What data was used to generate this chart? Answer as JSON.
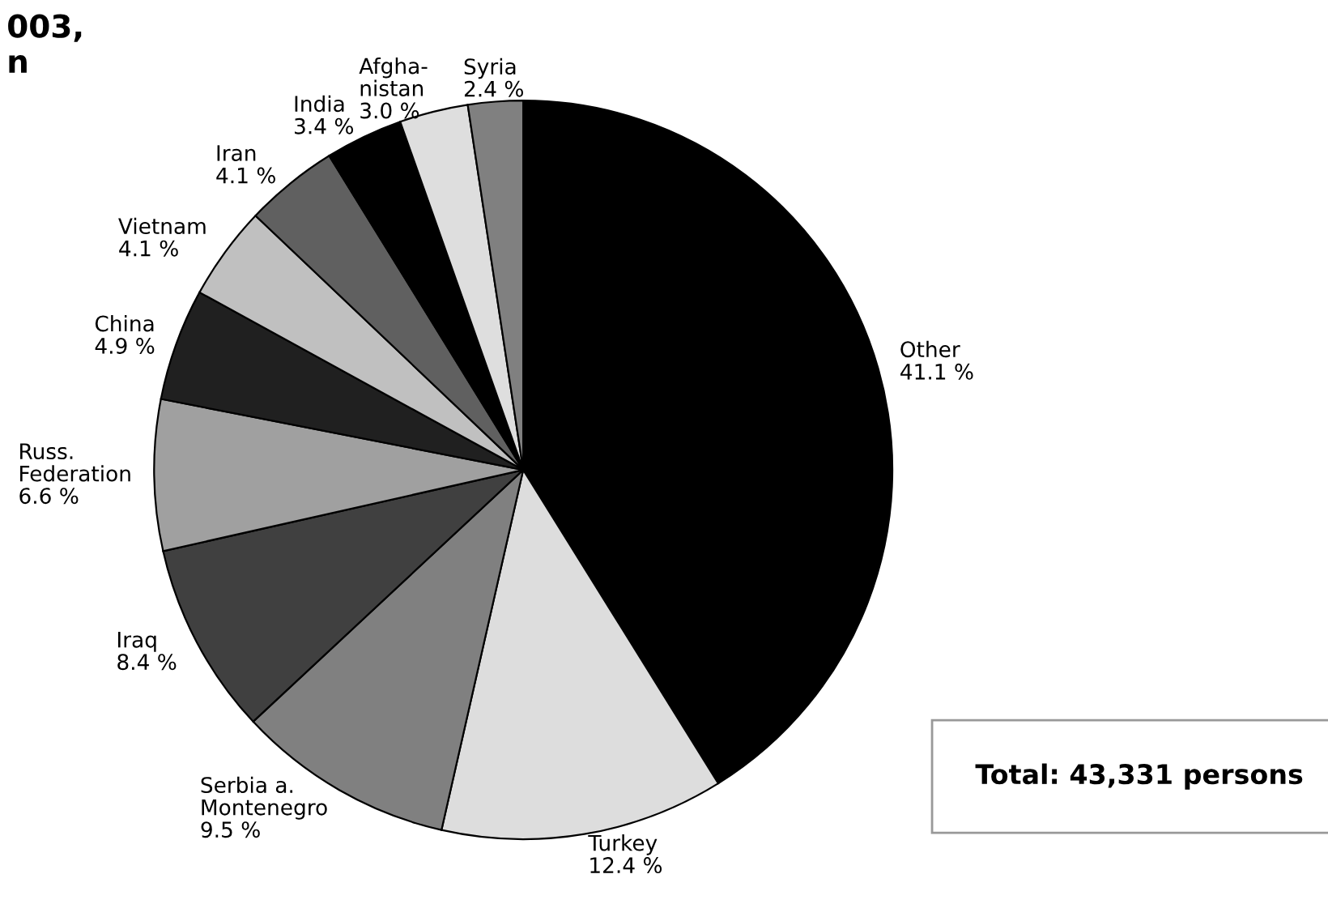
{
  "chart_data": {
    "type": "pie",
    "title": "003,\nn",
    "categories": [
      "Other",
      "Turkey",
      "Serbia a.\nMontenegro",
      "Iraq",
      "Russ.\nFederation",
      "China",
      "Vietnam",
      "Iran",
      "India",
      "Afgha-\nnistan",
      "Syria"
    ],
    "values": [
      41.1,
      12.4,
      9.5,
      8.4,
      6.6,
      4.9,
      4.1,
      4.1,
      3.4,
      3.0,
      2.4
    ],
    "value_labels": [
      "41.1 %",
      "12.4 %",
      "9.5 %",
      "8.4 %",
      "6.6 %",
      "4.9 %",
      "4.1 %",
      "4.1 %",
      "3.4 %",
      "3.0 %",
      "2.4 %"
    ],
    "colors": [
      "#000000",
      "#dddddd",
      "#808080",
      "#404040",
      "#a0a0a0",
      "#202020",
      "#c0c0c0",
      "#606060",
      "#000000",
      "#dedede",
      "#808080"
    ],
    "annotations": [
      "Total: 43,331 persons"
    ],
    "legend": false
  }
}
